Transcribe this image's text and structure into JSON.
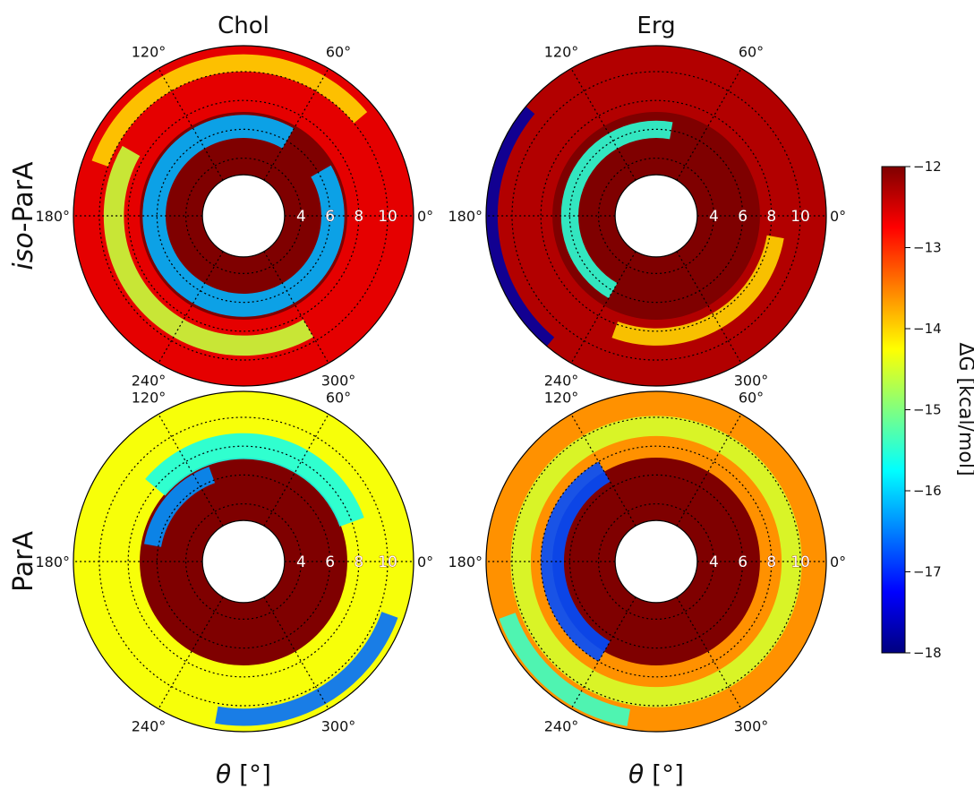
{
  "chart_data": {
    "type": "heatmap",
    "subtype": "polar-contour",
    "column_titles": [
      "Chol",
      "Erg"
    ],
    "row_titles": [
      {
        "prefix": "iso",
        "suffix": "-ParA"
      },
      {
        "prefix": "",
        "suffix": "ParA"
      }
    ],
    "xlabel": {
      "symbol": "θ",
      "unit": "[°]"
    },
    "angle_ticks": [
      "0°",
      "60°",
      "120°",
      "180°",
      "240°",
      "300°"
    ],
    "radial_ticks": [
      "4",
      "6",
      "8",
      "10"
    ],
    "radial_range": [
      2.6,
      11.8
    ],
    "angle_direction": "counterclockwise",
    "grid": true,
    "colorbar": {
      "label": "ΔG [kcal/mol]",
      "range": [
        -18,
        -12
      ],
      "ticks": [
        "−12",
        "−13",
        "−14",
        "−15",
        "−16",
        "−17",
        "−18"
      ],
      "colormap": "jet",
      "placement": "right"
    },
    "panels": [
      {
        "row": 0,
        "col": 0,
        "column": "Chol",
        "row_label": "iso-ParA",
        "base": -12.6,
        "deep_value": -12.0,
        "bands": [
          {
            "r": 6.2,
            "phase": 60,
            "sweep": 330,
            "width": 0.8,
            "value": -16.2
          },
          {
            "r": 9.0,
            "phase": 150,
            "sweep": 150,
            "width": 0.7,
            "value": -14.6
          },
          {
            "r": 10.6,
            "phase": 40,
            "sweep": 120,
            "width": 0.6,
            "value": -14.0
          }
        ],
        "inner_red_sweep": 360
      },
      {
        "row": 0,
        "col": 1,
        "column": "Erg",
        "row_label": "iso-ParA",
        "base": -12.3,
        "deep_value": -12.0,
        "bands": [
          {
            "r": 6.0,
            "phase": 80,
            "sweep": 160,
            "width": 0.6,
            "value": -15.5
          },
          {
            "r": 8.4,
            "phase": 250,
            "sweep": 100,
            "width": 0.6,
            "value": -14.0
          },
          {
            "r": 11.4,
            "phase": 140,
            "sweep": 90,
            "width": 0.4,
            "value": -17.8
          }
        ],
        "inner_red_sweep": 360
      },
      {
        "row": 1,
        "col": 0,
        "column": "Chol",
        "row_label": "ParA",
        "base": -14.3,
        "deep_value": -12.0,
        "bands": [
          {
            "r": 6.4,
            "phase": 110,
            "sweep": 60,
            "width": 0.6,
            "value": -16.4
          },
          {
            "r": 8.0,
            "phase": 20,
            "sweep": 120,
            "width": 0.9,
            "value": -15.6
          },
          {
            "r": 10.8,
            "phase": 260,
            "sweep": 80,
            "width": 0.6,
            "value": -16.6
          }
        ],
        "inner_red_sweep": 360
      },
      {
        "row": 1,
        "col": 1,
        "column": "Erg",
        "row_label": "ParA",
        "base": -13.6,
        "deep_value": -12.0,
        "bands": [
          {
            "r": 7.2,
            "phase": 120,
            "sweep": 120,
            "width": 0.8,
            "value": -16.8
          },
          {
            "r": 9.4,
            "phase": 0,
            "sweep": 360,
            "width": 0.7,
            "value": -14.5
          },
          {
            "r": 11.0,
            "phase": 200,
            "sweep": 60,
            "width": 0.6,
            "value": -15.4
          }
        ],
        "inner_red_sweep": 360
      }
    ]
  }
}
